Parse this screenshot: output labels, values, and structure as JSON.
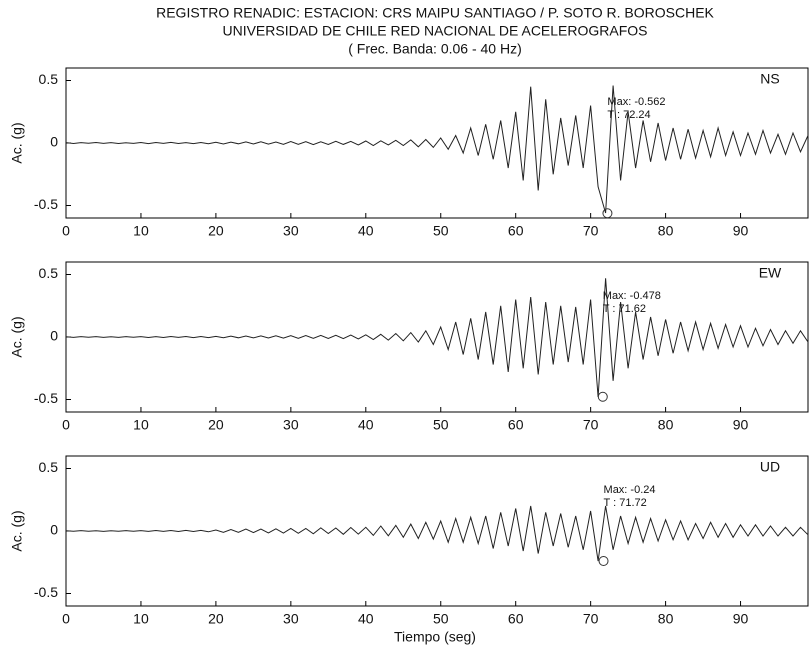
{
  "chart_data": [
    {
      "type": "line",
      "title": "REGISTRO RENADIC: ESTACION: CRS MAIPU SANTIAGO / P. SOTO R. BOROSCHEK",
      "subtitle": "UNIVERSIDAD DE CHILE RED NACIONAL DE ACELEROGRAFOS",
      "note": "( Frec. Banda: 0.06 - 40 Hz)",
      "y_label": "Ac. (g)",
      "channel": "NS",
      "xlim": [
        0,
        99
      ],
      "ylim": [
        -0.6,
        0.6
      ],
      "xticks": [
        0,
        10,
        20,
        30,
        40,
        50,
        60,
        70,
        80,
        90
      ],
      "yticks": [
        -0.5,
        0,
        0.5
      ],
      "color": "#222222",
      "x": [
        0,
        1,
        2,
        3,
        4,
        5,
        6,
        7,
        8,
        9,
        10,
        11,
        12,
        13,
        14,
        15,
        16,
        17,
        18,
        19,
        20,
        21,
        22,
        23,
        24,
        25,
        26,
        27,
        28,
        29,
        30,
        31,
        32,
        33,
        34,
        35,
        36,
        37,
        38,
        39,
        40,
        41,
        42,
        43,
        44,
        45,
        46,
        47,
        48,
        49,
        50,
        51,
        52,
        53,
        54,
        55,
        56,
        57,
        58,
        59,
        60,
        61,
        62,
        63,
        64,
        65,
        66,
        67,
        68,
        69,
        70,
        71,
        72,
        73,
        74,
        75,
        76,
        77,
        78,
        79,
        80,
        81,
        82,
        83,
        84,
        85,
        86,
        87,
        88,
        89,
        90,
        91,
        92,
        93,
        94,
        95,
        96,
        97,
        98,
        99
      ],
      "values": [
        0.003,
        -0.004,
        0.003,
        -0.002,
        0.004,
        -0.003,
        0.003,
        -0.004,
        0.002,
        -0.003,
        0.004,
        -0.005,
        0.004,
        -0.003,
        0.005,
        -0.004,
        0.003,
        -0.005,
        0.004,
        -0.006,
        0.006,
        -0.008,
        0.007,
        -0.006,
        0.009,
        -0.008,
        0.01,
        -0.009,
        0.008,
        -0.01,
        0.012,
        -0.01,
        0.011,
        -0.013,
        0.01,
        -0.012,
        0.014,
        -0.011,
        0.013,
        -0.015,
        0.016,
        -0.02,
        0.018,
        -0.015,
        0.022,
        -0.02,
        0.025,
        -0.03,
        0.028,
        -0.035,
        0.04,
        -0.05,
        0.06,
        -0.08,
        0.12,
        -0.1,
        0.15,
        -0.13,
        0.18,
        -0.2,
        0.25,
        -0.3,
        0.45,
        -0.38,
        0.35,
        -0.25,
        0.2,
        -0.18,
        0.22,
        -0.2,
        0.3,
        -0.35,
        -0.56,
        0.46,
        -0.3,
        0.25,
        -0.2,
        0.18,
        -0.15,
        0.16,
        -0.14,
        0.12,
        -0.13,
        0.11,
        -0.12,
        0.1,
        -0.11,
        0.12,
        -0.1,
        0.09,
        -0.1,
        0.08,
        -0.09,
        0.1,
        -0.08,
        0.07,
        -0.09,
        0.08,
        -0.07,
        0.06
      ],
      "peak": {
        "t": 72.24,
        "value": -0.562
      },
      "peak_labels": [
        "Max: -0.562",
        "T   : 72.24"
      ]
    },
    {
      "type": "line",
      "y_label": "Ac. (g)",
      "channel": "EW",
      "xlim": [
        0,
        99
      ],
      "ylim": [
        -0.6,
        0.6
      ],
      "xticks": [
        0,
        10,
        20,
        30,
        40,
        50,
        60,
        70,
        80,
        90
      ],
      "yticks": [
        -0.5,
        0,
        0.5
      ],
      "color": "#222222",
      "x": [
        0,
        1,
        2,
        3,
        4,
        5,
        6,
        7,
        8,
        9,
        10,
        11,
        12,
        13,
        14,
        15,
        16,
        17,
        18,
        19,
        20,
        21,
        22,
        23,
        24,
        25,
        26,
        27,
        28,
        29,
        30,
        31,
        32,
        33,
        34,
        35,
        36,
        37,
        38,
        39,
        40,
        41,
        42,
        43,
        44,
        45,
        46,
        47,
        48,
        49,
        50,
        51,
        52,
        53,
        54,
        55,
        56,
        57,
        58,
        59,
        60,
        61,
        62,
        63,
        64,
        65,
        66,
        67,
        68,
        69,
        70,
        71,
        72,
        73,
        74,
        75,
        76,
        77,
        78,
        79,
        80,
        81,
        82,
        83,
        84,
        85,
        86,
        87,
        88,
        89,
        90,
        91,
        92,
        93,
        94,
        95,
        96,
        97,
        98,
        99
      ],
      "values": [
        0.002,
        -0.003,
        0.003,
        -0.002,
        0.003,
        -0.003,
        0.002,
        -0.003,
        0.003,
        -0.002,
        0.003,
        -0.004,
        0.003,
        -0.004,
        0.004,
        -0.003,
        0.004,
        -0.005,
        0.004,
        -0.005,
        0.005,
        -0.006,
        0.007,
        -0.006,
        0.008,
        -0.007,
        0.009,
        -0.008,
        0.01,
        -0.009,
        0.011,
        -0.01,
        0.012,
        -0.011,
        0.013,
        -0.012,
        0.014,
        -0.013,
        0.016,
        -0.015,
        0.018,
        -0.02,
        0.022,
        -0.025,
        0.028,
        -0.03,
        0.035,
        -0.04,
        0.05,
        -0.06,
        0.08,
        -0.1,
        0.12,
        -0.14,
        0.15,
        -0.18,
        0.2,
        -0.22,
        0.25,
        -0.28,
        0.3,
        -0.25,
        0.32,
        -0.3,
        0.28,
        -0.22,
        0.25,
        -0.2,
        0.24,
        -0.22,
        0.3,
        -0.48,
        0.47,
        -0.35,
        0.28,
        -0.25,
        0.2,
        -0.18,
        0.16,
        -0.15,
        0.14,
        -0.13,
        0.12,
        -0.11,
        0.12,
        -0.1,
        0.11,
        -0.09,
        0.1,
        -0.08,
        0.09,
        -0.08,
        0.07,
        -0.07,
        0.06,
        -0.06,
        0.05,
        -0.05,
        0.05,
        -0.04
      ],
      "peak": {
        "t": 71.62,
        "value": -0.478
      },
      "peak_labels": [
        "Max: -0.478",
        "T   : 71.62"
      ]
    },
    {
      "type": "line",
      "y_label": "Ac. (g)",
      "x_label": "Tiempo (seg)",
      "channel": "UD",
      "xlim": [
        0,
        99
      ],
      "ylim": [
        -0.6,
        0.6
      ],
      "xticks": [
        0,
        10,
        20,
        30,
        40,
        50,
        60,
        70,
        80,
        90
      ],
      "yticks": [
        -0.5,
        0,
        0.5
      ],
      "color": "#222222",
      "x": [
        0,
        1,
        2,
        3,
        4,
        5,
        6,
        7,
        8,
        9,
        10,
        11,
        12,
        13,
        14,
        15,
        16,
        17,
        18,
        19,
        20,
        21,
        22,
        23,
        24,
        25,
        26,
        27,
        28,
        29,
        30,
        31,
        32,
        33,
        34,
        35,
        36,
        37,
        38,
        39,
        40,
        41,
        42,
        43,
        44,
        45,
        46,
        47,
        48,
        49,
        50,
        51,
        52,
        53,
        54,
        55,
        56,
        57,
        58,
        59,
        60,
        61,
        62,
        63,
        64,
        65,
        66,
        67,
        68,
        69,
        70,
        71,
        72,
        73,
        74,
        75,
        76,
        77,
        78,
        79,
        80,
        81,
        82,
        83,
        84,
        85,
        86,
        87,
        88,
        89,
        90,
        91,
        92,
        93,
        94,
        95,
        96,
        97,
        98,
        99
      ],
      "values": [
        0.002,
        -0.002,
        0.003,
        -0.002,
        0.002,
        -0.003,
        0.002,
        -0.002,
        0.003,
        -0.002,
        0.003,
        -0.003,
        0.004,
        -0.003,
        0.004,
        -0.004,
        0.005,
        -0.004,
        0.005,
        -0.006,
        0.008,
        -0.01,
        0.012,
        -0.01,
        0.015,
        -0.013,
        0.016,
        -0.015,
        0.018,
        -0.016,
        0.02,
        -0.018,
        0.02,
        -0.022,
        0.025,
        -0.02,
        0.024,
        -0.026,
        0.028,
        -0.025,
        0.03,
        -0.035,
        0.04,
        -0.038,
        0.045,
        -0.05,
        0.055,
        -0.06,
        0.07,
        -0.065,
        0.08,
        -0.09,
        0.1,
        -0.09,
        0.11,
        -0.1,
        0.12,
        -0.14,
        0.15,
        -0.12,
        0.18,
        -0.16,
        0.2,
        -0.18,
        0.15,
        -0.12,
        0.14,
        -0.13,
        0.12,
        -0.15,
        0.16,
        -0.24,
        0.2,
        -0.15,
        0.12,
        -0.1,
        0.11,
        -0.09,
        0.1,
        -0.08,
        0.09,
        -0.07,
        0.08,
        -0.07,
        0.06,
        -0.06,
        0.07,
        -0.05,
        0.06,
        -0.05,
        0.05,
        -0.04,
        0.05,
        -0.04,
        0.04,
        -0.04,
        0.03,
        -0.04,
        0.03,
        -0.03
      ],
      "peak": {
        "t": 71.72,
        "value": -0.24
      },
      "peak_labels": [
        "Max: -0.24",
        "T   : 71.72"
      ]
    }
  ]
}
